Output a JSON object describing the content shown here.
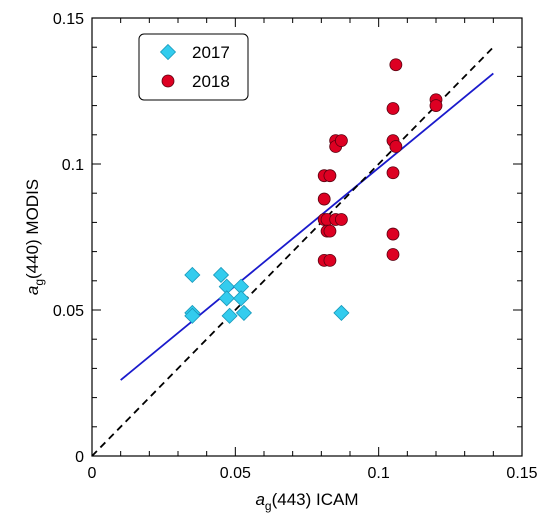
{
  "chart_data": {
    "type": "scatter",
    "title": "",
    "xlabel": {
      "var": "a",
      "sub": "g",
      "rest": "(443) ICAM"
    },
    "ylabel": {
      "var": "a",
      "sub": "g",
      "rest": "(440) MODIS"
    },
    "xlim": [
      0,
      0.15
    ],
    "ylim": [
      0,
      0.15
    ],
    "xticks": [
      0,
      0.05,
      0.1,
      0.15
    ],
    "yticks": [
      0,
      0.05,
      0.1,
      0.15
    ],
    "xtick_labels": [
      "0",
      "0.05",
      "0.1",
      "0.15"
    ],
    "ytick_labels": [
      "0",
      "0.05",
      "0.1",
      "0.15"
    ],
    "legend_position": "top-left",
    "series": [
      {
        "name": "2017",
        "marker": "diamond",
        "color": "#33ccee",
        "points": [
          [
            0.035,
            0.062
          ],
          [
            0.035,
            0.049
          ],
          [
            0.035,
            0.048
          ],
          [
            0.045,
            0.062
          ],
          [
            0.047,
            0.058
          ],
          [
            0.047,
            0.054
          ],
          [
            0.048,
            0.048
          ],
          [
            0.052,
            0.058
          ],
          [
            0.052,
            0.054
          ],
          [
            0.053,
            0.049
          ],
          [
            0.087,
            0.049
          ]
        ]
      },
      {
        "name": "2018",
        "marker": "circle",
        "color": "#dd0022",
        "points": [
          [
            0.081,
            0.096
          ],
          [
            0.083,
            0.096
          ],
          [
            0.081,
            0.088
          ],
          [
            0.081,
            0.081
          ],
          [
            0.082,
            0.081
          ],
          [
            0.082,
            0.077
          ],
          [
            0.083,
            0.077
          ],
          [
            0.081,
            0.067
          ],
          [
            0.083,
            0.067
          ],
          [
            0.085,
            0.108
          ],
          [
            0.085,
            0.106
          ],
          [
            0.087,
            0.108
          ],
          [
            0.085,
            0.081
          ],
          [
            0.087,
            0.081
          ],
          [
            0.105,
            0.108
          ],
          [
            0.106,
            0.106
          ],
          [
            0.105,
            0.119
          ],
          [
            0.106,
            0.134
          ],
          [
            0.105,
            0.097
          ],
          [
            0.105,
            0.076
          ],
          [
            0.105,
            0.069
          ],
          [
            0.12,
            0.122
          ],
          [
            0.12,
            0.12
          ]
        ]
      }
    ],
    "lines": [
      {
        "name": "regression",
        "style": "solid",
        "color": "#1a1acc",
        "x": [
          0.01,
          0.14
        ],
        "y": [
          0.026,
          0.131
        ]
      },
      {
        "name": "one-to-one",
        "style": "dashed",
        "color": "#000000",
        "x": [
          0,
          0.14
        ],
        "y": [
          0,
          0.14
        ]
      }
    ]
  }
}
